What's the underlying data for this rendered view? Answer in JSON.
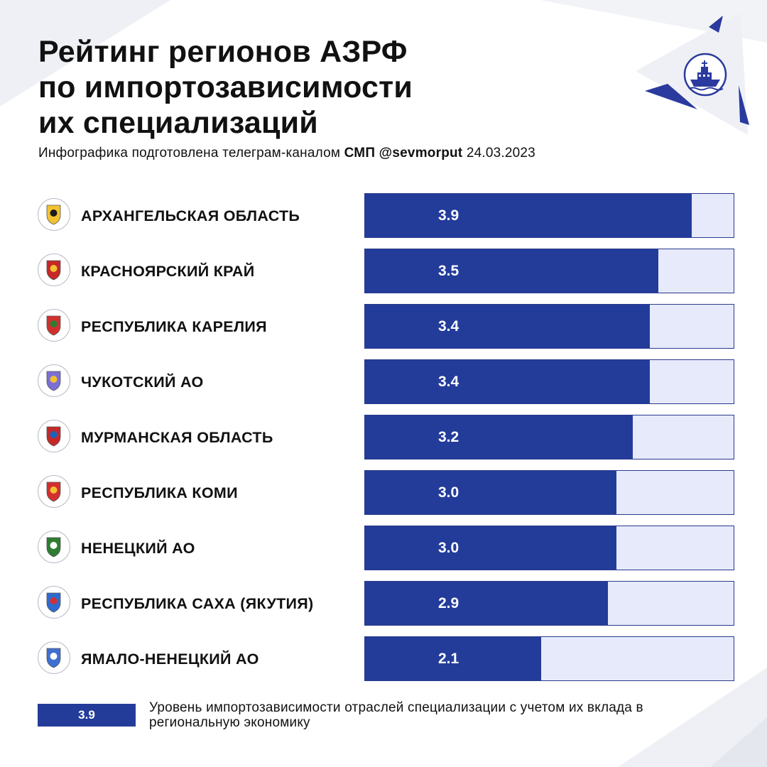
{
  "header": {
    "title_lines": [
      "Рейтинг регионов АЗРФ",
      "по импортозависимости",
      "их специализаций"
    ],
    "subtitle": {
      "prefix": "Инфографика подготовлена телеграм-каналом",
      "channel": "СМП @sevmorput",
      "date": "24.03.2023"
    },
    "logo_icon": "icebreaker-ship-icon"
  },
  "colors": {
    "bar_fill": "#233c9a",
    "bar_track": "#e6eafb",
    "background_triangles": "#eef0f5",
    "accent_triangles": "#2a3a9e"
  },
  "chart_data": {
    "type": "bar",
    "orientation": "horizontal",
    "xlim": [
      0,
      4.4
    ],
    "categories": [
      "АРХАНГЕЛЬСКАЯ ОБЛАСТЬ",
      "КРАСНОЯРСКИЙ КРАЙ",
      "РЕСПУБЛИКА КАРЕЛИЯ",
      "ЧУКОТСКИЙ АО",
      "МУРМАНСКАЯ ОБЛАСТЬ",
      "РЕСПУБЛИКА КОМИ",
      "НЕНЕЦКИЙ АО",
      "РЕСПУБЛИКА САХА (ЯКУТИЯ)",
      "ЯМАЛО-НЕНЕЦКИЙ АО"
    ],
    "values": [
      3.9,
      3.5,
      3.4,
      3.4,
      3.2,
      3.0,
      3.0,
      2.9,
      2.1
    ],
    "value_labels": [
      "3.9",
      "3.5",
      "3.4",
      "3.4",
      "3.2",
      "3.0",
      "3.0",
      "2.9",
      "2.1"
    ],
    "emblem_icons": [
      "arkhangelsk-emblem-icon",
      "krasnoyarsk-emblem-icon",
      "karelia-emblem-icon",
      "chukotka-emblem-icon",
      "murmansk-emblem-icon",
      "komi-emblem-icon",
      "nenets-emblem-icon",
      "sakha-emblem-icon",
      "yamal-emblem-icon"
    ],
    "legend": {
      "sample_value": "3.9",
      "text": "Уровень импортозависимости отраслей специализации с учетом их вклада в региональную экономику"
    }
  }
}
